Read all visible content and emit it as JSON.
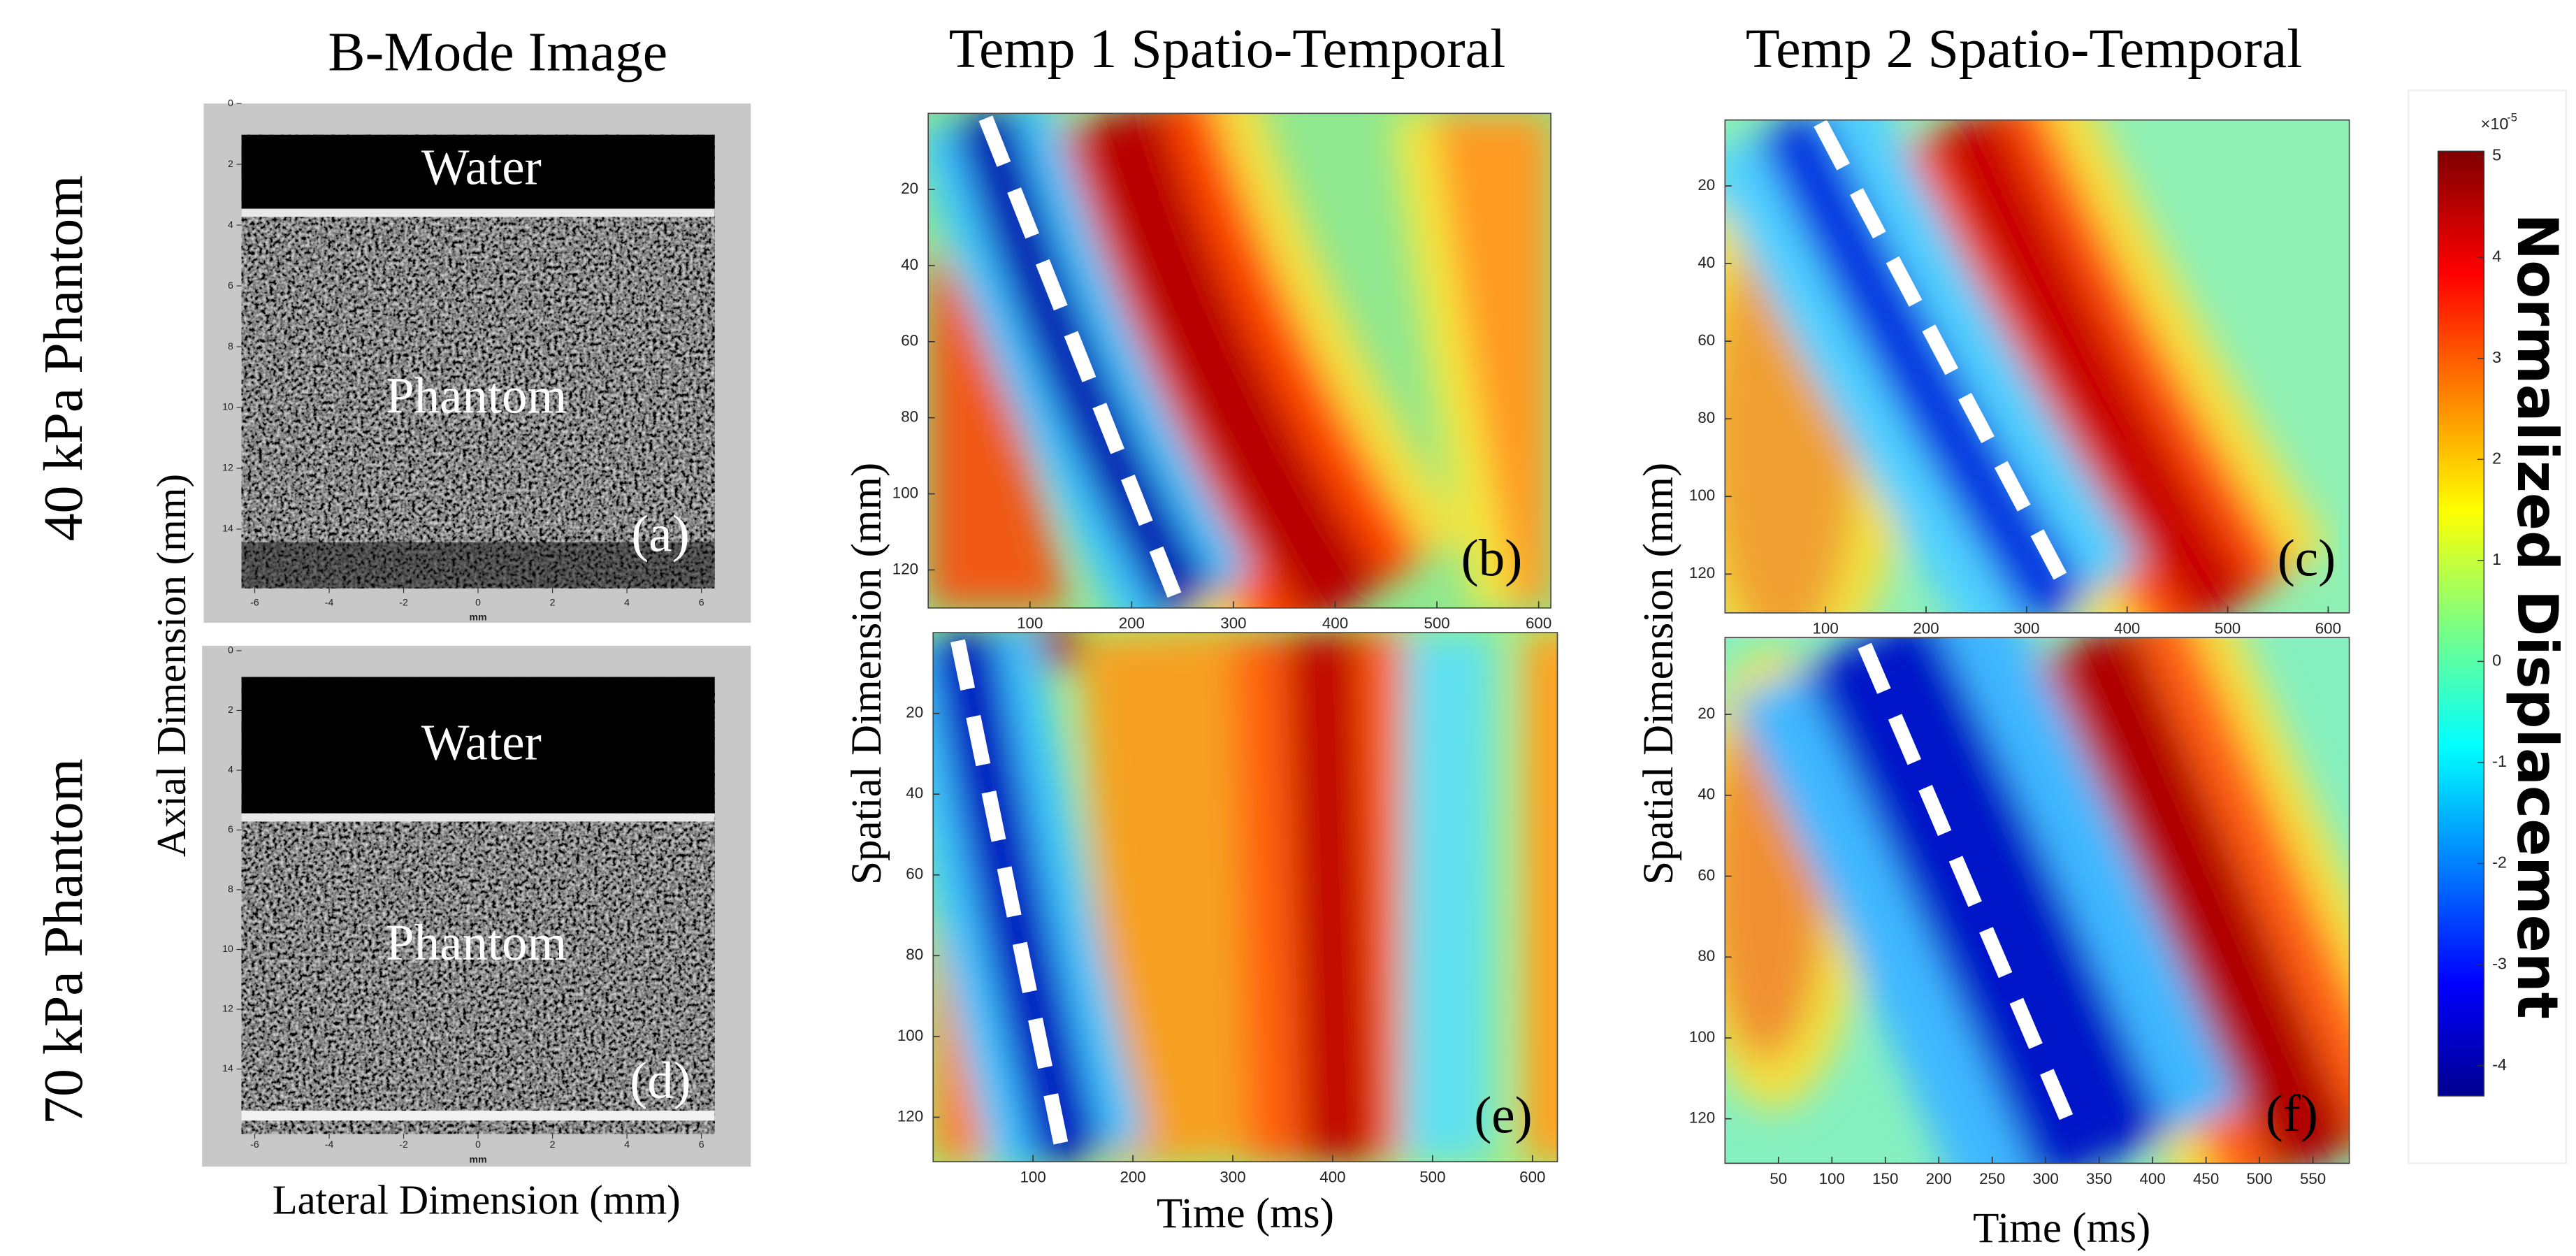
{
  "column_titles": [
    "B-Mode Image",
    "Temp 1 Spatio-Temporal",
    "Temp 2 Spatio-Temporal"
  ],
  "row_labels": [
    "40 kPa Phantom",
    "70 kPa Phantom"
  ],
  "bmode": {
    "y_label": "Axial Dimension (mm)",
    "x_label": "Lateral Dimension (mm)",
    "unit": "mm",
    "xlim": [
      -6.4,
      6.4
    ],
    "ylim": [
      0,
      16
    ],
    "xticks": [
      -6,
      -4,
      -2,
      0,
      2,
      4,
      6
    ],
    "yticks": [
      0,
      2,
      4,
      6,
      8,
      10,
      12,
      14
    ],
    "panels": [
      {
        "tag": "(a)",
        "regions": [
          "Water",
          "Phantom"
        ]
      },
      {
        "tag": "(d)",
        "regions": [
          "Water",
          "Phantom"
        ]
      }
    ]
  },
  "spatiotemporal": {
    "y_label": "Spatial Dimension (mm)",
    "x_label": "Time (ms)",
    "panels": [
      {
        "tag": "(b)",
        "xlim": [
          0,
          612
        ],
        "ylim": [
          0,
          130
        ],
        "xticks": [
          100,
          200,
          300,
          400,
          500,
          600
        ],
        "yticks": [
          20,
          40,
          60,
          80,
          100,
          120
        ]
      },
      {
        "tag": "(c)",
        "xlim": [
          0,
          621
        ],
        "ylim": [
          3,
          130
        ],
        "xticks": [
          100,
          200,
          300,
          400,
          500,
          600
        ],
        "yticks": [
          20,
          40,
          60,
          80,
          100,
          120
        ]
      },
      {
        "tag": "(e)",
        "xlim": [
          0,
          625
        ],
        "ylim": [
          0,
          131
        ],
        "xticks": [
          100,
          200,
          300,
          400,
          500,
          600
        ],
        "yticks": [
          20,
          40,
          60,
          80,
          100,
          120
        ]
      },
      {
        "tag": "(f)",
        "xlim": [
          0,
          584
        ],
        "ylim": [
          1,
          131
        ],
        "xticks": [
          50,
          100,
          150,
          200,
          250,
          300,
          350,
          400,
          450,
          500,
          550
        ],
        "yticks": [
          20,
          40,
          60,
          80,
          100,
          120
        ]
      }
    ]
  },
  "colorbar": {
    "label": "Normalized Displacement",
    "multiplier": "×10",
    "exponent": "-5",
    "ylim": [
      -4.3,
      5.05
    ],
    "ticks": [
      -4,
      -3,
      -2,
      -1,
      0,
      1,
      2,
      3,
      4,
      5
    ]
  }
}
